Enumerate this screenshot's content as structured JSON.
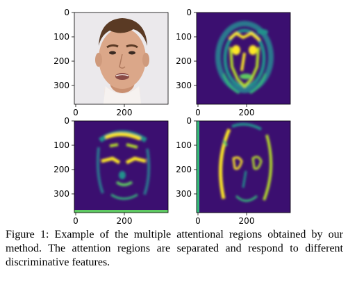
{
  "figure": {
    "caption": "Figure 1: Example of the multiple attentional regions obtained by our method. The attention regions are separated and respond to different discriminative features.",
    "panels": [
      {
        "kind": "photo",
        "content": "face-photo",
        "y_ticks": [
          "0",
          "100",
          "200",
          "300"
        ],
        "x_ticks": [
          "0",
          "200"
        ]
      },
      {
        "kind": "attention_map",
        "content": "face-outline-and-features",
        "y_ticks": [
          "0",
          "100",
          "200",
          "300"
        ],
        "x_ticks": [
          "0",
          "200"
        ]
      },
      {
        "kind": "attention_map",
        "content": "eyebrows-eyes-and-hairline",
        "y_ticks": [
          "0",
          "100",
          "200",
          "300"
        ],
        "x_ticks": [
          "0",
          "200"
        ]
      },
      {
        "kind": "attention_map",
        "content": "face-contour-and-cheeks",
        "y_ticks": [
          "0",
          "100",
          "200",
          "300"
        ],
        "x_ticks": [
          "0",
          "200"
        ]
      }
    ],
    "colors": {
      "heatmap_low": "#3b0f70",
      "heatmap_mid": "#21918c",
      "heatmap_high": "#fde725",
      "photo_bg": "#ebe9ec",
      "skin": "#d9a585",
      "hair": "#5a3a24"
    }
  }
}
